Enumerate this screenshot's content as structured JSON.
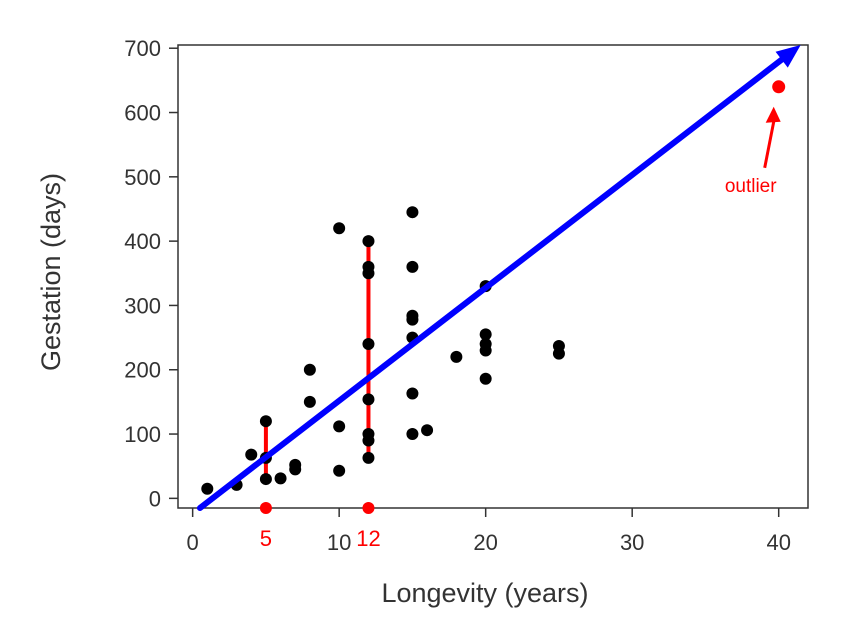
{
  "chart_data": {
    "type": "scatter",
    "xlabel": "Longevity (years)",
    "ylabel": "Gestation (days)",
    "xlim": [
      -1,
      42
    ],
    "ylim": [
      -15,
      705
    ],
    "xticks": [
      0,
      10,
      20,
      30,
      40
    ],
    "yticks": [
      0,
      100,
      200,
      300,
      400,
      500,
      600,
      700
    ],
    "grid": false,
    "legend": "none",
    "colors": {
      "points": "#000000",
      "line": "#0000ff",
      "highlight": "#ff0000",
      "axis": "#333333"
    },
    "points": [
      {
        "x": 1,
        "y": 15
      },
      {
        "x": 3,
        "y": 21
      },
      {
        "x": 4,
        "y": 68
      },
      {
        "x": 5,
        "y": 120
      },
      {
        "x": 5,
        "y": 63
      },
      {
        "x": 5,
        "y": 30
      },
      {
        "x": 6,
        "y": 31
      },
      {
        "x": 7,
        "y": 45
      },
      {
        "x": 7,
        "y": 52
      },
      {
        "x": 8,
        "y": 150
      },
      {
        "x": 8,
        "y": 200
      },
      {
        "x": 10,
        "y": 420
      },
      {
        "x": 10,
        "y": 112
      },
      {
        "x": 10,
        "y": 43
      },
      {
        "x": 12,
        "y": 400
      },
      {
        "x": 12,
        "y": 360
      },
      {
        "x": 12,
        "y": 350
      },
      {
        "x": 12,
        "y": 240
      },
      {
        "x": 12,
        "y": 154
      },
      {
        "x": 12,
        "y": 100
      },
      {
        "x": 12,
        "y": 90
      },
      {
        "x": 12,
        "y": 63
      },
      {
        "x": 15,
        "y": 445
      },
      {
        "x": 15,
        "y": 360
      },
      {
        "x": 15,
        "y": 284
      },
      {
        "x": 15,
        "y": 278
      },
      {
        "x": 15,
        "y": 250
      },
      {
        "x": 15,
        "y": 163
      },
      {
        "x": 15,
        "y": 100
      },
      {
        "x": 16,
        "y": 106
      },
      {
        "x": 18,
        "y": 220
      },
      {
        "x": 20,
        "y": 330
      },
      {
        "x": 20,
        "y": 255
      },
      {
        "x": 20,
        "y": 240
      },
      {
        "x": 20,
        "y": 230
      },
      {
        "x": 20,
        "y": 186
      },
      {
        "x": 25,
        "y": 237
      },
      {
        "x": 25,
        "y": 225
      }
    ],
    "outlier": {
      "x": 40,
      "y": 640,
      "label": "outlier"
    },
    "trend_line": {
      "x0": 0.5,
      "y0": -15,
      "x1": 41.5,
      "y1": 705
    },
    "vertical_segments": [
      {
        "x": 5,
        "y_low": 30,
        "y_high": 120
      },
      {
        "x": 12,
        "y_low": 63,
        "y_high": 400
      }
    ],
    "x_markers": [
      {
        "x": 5,
        "label": "5"
      },
      {
        "x": 12,
        "label": "12"
      }
    ]
  }
}
